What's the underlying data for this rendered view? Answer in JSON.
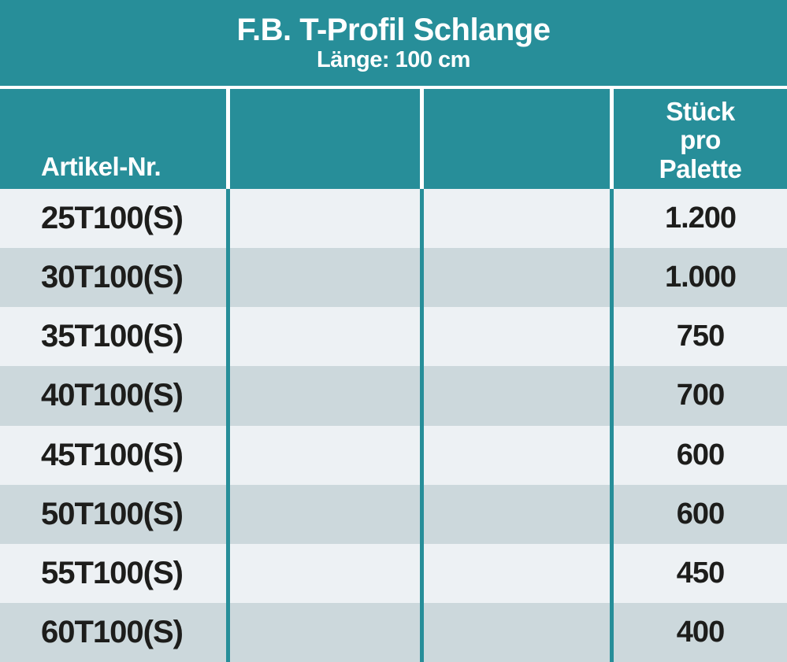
{
  "header": {
    "title": "F.B. T-Profil Schlange",
    "subtitle": "Länge: 100 cm"
  },
  "table": {
    "columns": {
      "artikel_label": "Artikel-Nr.",
      "col2_label": "",
      "col3_label": "",
      "stueck_lines": [
        "Stück",
        "pro",
        "Palette"
      ]
    },
    "rows": [
      {
        "artikel": "25T100(S)",
        "stueck": "1.200"
      },
      {
        "artikel": "30T100(S)",
        "stueck": "1.000"
      },
      {
        "artikel": "35T100(S)",
        "stueck": "750"
      },
      {
        "artikel": "40T100(S)",
        "stueck": "700"
      },
      {
        "artikel": "45T100(S)",
        "stueck": "600"
      },
      {
        "artikel": "50T100(S)",
        "stueck": "600"
      },
      {
        "artikel": "55T100(S)",
        "stueck": "450"
      },
      {
        "artikel": "60T100(S)",
        "stueck": "400"
      }
    ]
  },
  "colors": {
    "teal": "#278e99",
    "row_light": "#edf1f4",
    "row_dark": "#ccd8dc",
    "divider_header": "#ffffff",
    "divider_body": "#278e99",
    "text_dark": "#1d1d1b",
    "text_light": "#ffffff"
  }
}
